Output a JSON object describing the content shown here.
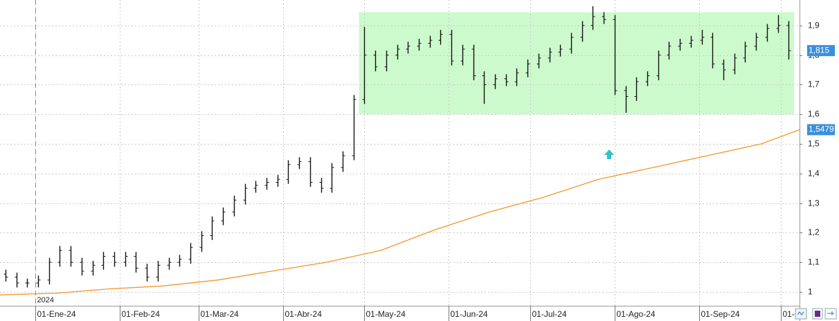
{
  "chart_data": {
    "type": "ohlc",
    "x": [
      -11,
      -7,
      -3,
      1,
      5,
      9,
      13,
      17,
      21,
      25,
      29,
      33,
      37,
      41,
      45,
      49,
      53,
      57,
      61,
      65,
      69,
      73,
      77,
      81,
      85,
      89,
      93,
      97,
      101,
      105,
      109,
      113,
      117,
      121,
      125,
      129,
      133,
      137,
      141,
      145,
      149,
      153,
      157,
      161,
      165,
      169,
      173,
      177,
      181,
      185,
      189,
      193,
      197,
      201,
      205,
      209,
      213,
      217,
      221,
      225,
      229,
      233,
      237,
      241,
      245,
      249,
      253,
      257,
      261,
      265,
      269,
      273,
      277
    ],
    "open": [
      1.06,
      1.05,
      1.03,
      1.03,
      1.04,
      1.1,
      1.14,
      1.1,
      1.07,
      1.09,
      1.12,
      1.1,
      1.12,
      1.08,
      1.05,
      1.09,
      1.1,
      1.11,
      1.15,
      1.19,
      1.24,
      1.27,
      1.31,
      1.35,
      1.36,
      1.37,
      1.38,
      1.43,
      1.44,
      1.37,
      1.35,
      1.42,
      1.46,
      1.65,
      1.8,
      1.76,
      1.8,
      1.82,
      1.83,
      1.84,
      1.85,
      1.87,
      1.78,
      1.82,
      1.73,
      1.7,
      1.72,
      1.71,
      1.74,
      1.77,
      1.79,
      1.81,
      1.82,
      1.86,
      1.9,
      1.93,
      1.92,
      1.68,
      1.66,
      1.71,
      1.73,
      1.8,
      1.83,
      1.84,
      1.85,
      1.86,
      1.77,
      1.75,
      1.79,
      1.83,
      1.86,
      1.89,
      1.9
    ],
    "high": [
      1.075,
      1.065,
      1.045,
      1.055,
      1.115,
      1.155,
      1.155,
      1.115,
      1.105,
      1.135,
      1.135,
      1.135,
      1.135,
      1.095,
      1.105,
      1.115,
      1.125,
      1.165,
      1.205,
      1.255,
      1.285,
      1.325,
      1.365,
      1.375,
      1.385,
      1.395,
      1.445,
      1.455,
      1.455,
      1.385,
      1.435,
      1.475,
      1.665,
      1.895,
      1.815,
      1.815,
      1.835,
      1.845,
      1.855,
      1.865,
      1.885,
      1.885,
      1.835,
      1.835,
      1.745,
      1.735,
      1.735,
      1.755,
      1.785,
      1.805,
      1.825,
      1.835,
      1.875,
      1.915,
      1.965,
      1.945,
      1.935,
      1.695,
      1.725,
      1.745,
      1.815,
      1.845,
      1.855,
      1.865,
      1.885,
      1.875,
      1.785,
      1.805,
      1.845,
      1.875,
      1.905,
      1.935,
      1.915
    ],
    "low": [
      1.035,
      1.015,
      1.015,
      1.015,
      1.025,
      1.085,
      1.085,
      1.055,
      1.055,
      1.075,
      1.085,
      1.085,
      1.065,
      1.035,
      1.035,
      1.075,
      1.085,
      1.095,
      1.135,
      1.175,
      1.225,
      1.255,
      1.295,
      1.335,
      1.345,
      1.355,
      1.365,
      1.415,
      1.355,
      1.335,
      1.335,
      1.405,
      1.445,
      1.635,
      1.745,
      1.745,
      1.785,
      1.805,
      1.815,
      1.825,
      1.835,
      1.765,
      1.765,
      1.715,
      1.635,
      1.685,
      1.695,
      1.695,
      1.725,
      1.755,
      1.775,
      1.795,
      1.805,
      1.845,
      1.885,
      1.905,
      1.665,
      1.605,
      1.645,
      1.695,
      1.715,
      1.785,
      1.815,
      1.825,
      1.835,
      1.755,
      1.715,
      1.735,
      1.775,
      1.815,
      1.845,
      1.875,
      1.785
    ],
    "close": [
      1.05,
      1.03,
      1.03,
      1.04,
      1.1,
      1.14,
      1.1,
      1.07,
      1.09,
      1.12,
      1.1,
      1.12,
      1.08,
      1.05,
      1.09,
      1.1,
      1.11,
      1.15,
      1.19,
      1.24,
      1.27,
      1.31,
      1.35,
      1.36,
      1.37,
      1.38,
      1.43,
      1.44,
      1.37,
      1.35,
      1.42,
      1.46,
      1.65,
      1.8,
      1.76,
      1.8,
      1.82,
      1.83,
      1.84,
      1.85,
      1.87,
      1.78,
      1.82,
      1.73,
      1.7,
      1.72,
      1.71,
      1.74,
      1.77,
      1.79,
      1.81,
      1.82,
      1.86,
      1.9,
      1.93,
      1.92,
      1.68,
      1.66,
      1.71,
      1.73,
      1.8,
      1.83,
      1.84,
      1.85,
      1.86,
      1.77,
      1.75,
      1.79,
      1.83,
      1.86,
      1.89,
      1.9,
      1.815
    ],
    "bar_color": "#111111",
    "moving_average": {
      "color": "#f0962a",
      "x": [
        -13,
        7,
        27,
        47,
        67,
        87,
        107,
        127,
        147,
        167,
        187,
        207,
        227,
        247,
        267,
        281
      ],
      "values": [
        0.99,
        0.995,
        1.01,
        1.02,
        1.04,
        1.07,
        1.1,
        1.14,
        1.21,
        1.27,
        1.32,
        1.38,
        1.42,
        1.46,
        1.5,
        1.5479
      ]
    },
    "zone": {
      "color": "#ccfacc",
      "x": [
        119,
        279
      ],
      "y": [
        1.6,
        1.945
      ]
    },
    "xlim": [
      -13,
      281
    ],
    "ylim": [
      0.953,
      1.986
    ],
    "xticks": [
      {
        "value": 0,
        "label": "01-Ene-24"
      },
      {
        "value": 31,
        "label": "01-Feb-24"
      },
      {
        "value": 60,
        "label": "01-Mar-24"
      },
      {
        "value": 91,
        "label": "01-Abr-24"
      },
      {
        "value": 121,
        "label": "01-May-24"
      },
      {
        "value": 152,
        "label": "01-Jun-24"
      },
      {
        "value": 182,
        "label": "01-Jul-24"
      },
      {
        "value": 213,
        "label": "01-Ago-24"
      },
      {
        "value": 244,
        "label": "01-Sep-24"
      },
      {
        "value": 274,
        "label": "01-"
      }
    ],
    "yticks": [
      1,
      {
        "value": 1.1,
        "label": "1,1"
      },
      {
        "value": 1.2,
        "label": "1,2"
      },
      {
        "value": 1.3,
        "label": "1,3"
      },
      {
        "value": 1.4,
        "label": "1,4"
      },
      {
        "value": 1.5,
        "label": "1,5"
      },
      {
        "value": 1.6,
        "label": "1,6"
      },
      {
        "value": 1.7,
        "label": "1,7"
      },
      {
        "value": 1.8,
        "label": "1,8"
      },
      {
        "value": 1.9,
        "label": "1,9"
      }
    ],
    "grid": true,
    "price_labels": [
      {
        "value": 1.815,
        "label": "1,815",
        "color": "#3a8fdc"
      },
      {
        "value": 1.5479,
        "label": "1,5479",
        "color": "#3a8fdc"
      }
    ],
    "year_marker": {
      "value": 0,
      "label": "2024"
    }
  }
}
